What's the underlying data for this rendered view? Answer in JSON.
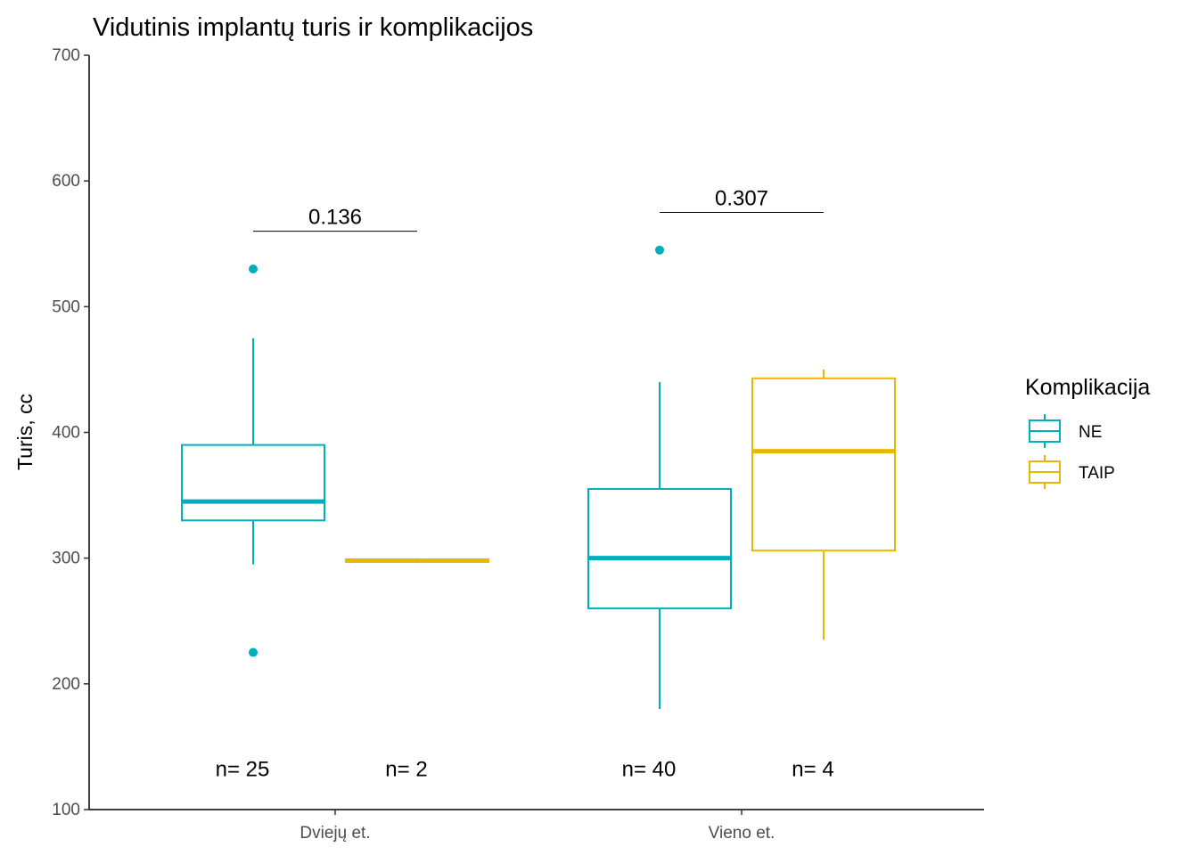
{
  "chart_data": {
    "type": "boxplot",
    "title": "Vidutinis implantų turis ir komplikacijos",
    "xlabel": "",
    "ylabel": "Turis, cc",
    "ylim": [
      100,
      700
    ],
    "yticks": [
      100,
      200,
      300,
      400,
      500,
      600,
      700
    ],
    "categories": [
      "Dviejų et.",
      "Vieno et."
    ],
    "legend": {
      "title": "Komplikacija",
      "position": "right",
      "entries": [
        {
          "name": "NE",
          "color": "#00AFBB"
        },
        {
          "name": "TAIP",
          "color": "#E7B800"
        }
      ]
    },
    "series": [
      {
        "name": "NE",
        "color": "#00AFBB",
        "boxes": [
          {
            "category": "Dviejų et.",
            "min": 295,
            "q1": 330,
            "median": 345,
            "q3": 390,
            "max": 475,
            "outliers": [
              530,
              225
            ],
            "n_label": "n= 25"
          },
          {
            "category": "Vieno et.",
            "min": 180,
            "q1": 260,
            "median": 300,
            "q3": 355,
            "max": 440,
            "outliers": [
              545
            ],
            "n_label": "n= 40"
          }
        ]
      },
      {
        "name": "TAIP",
        "color": "#E7B800",
        "boxes": [
          {
            "category": "Dviejų et.",
            "min": 297,
            "q1": 297,
            "median": 298,
            "q3": 299,
            "max": 300,
            "outliers": [],
            "n_label": "n= 2"
          },
          {
            "category": "Vieno et.",
            "min": 235,
            "q1": 306,
            "median": 385,
            "q3": 443,
            "max": 450,
            "outliers": [],
            "n_label": "n= 4"
          }
        ]
      }
    ],
    "comparisons": [
      {
        "category": "Dviejų et.",
        "label": "0.136",
        "y": 560
      },
      {
        "category": "Vieno et.",
        "label": "0.307",
        "y": 575
      }
    ],
    "n_label_y": 140,
    "grid": false
  }
}
